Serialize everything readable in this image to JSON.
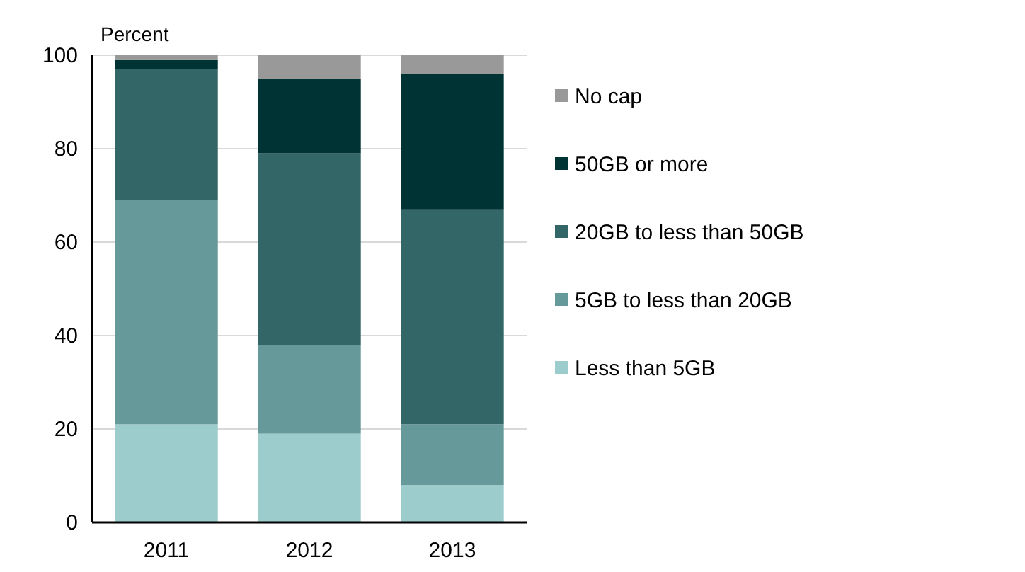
{
  "chart_data": {
    "type": "bar",
    "stacked": true,
    "ylabel": "Percent",
    "categories": [
      "2011",
      "2012",
      "2013"
    ],
    "series": [
      {
        "name": "Less than 5GB",
        "color": "#9ccccc",
        "values": [
          21,
          19,
          8
        ]
      },
      {
        "name": "5GB to less than 20GB",
        "color": "#669999",
        "values": [
          48,
          19,
          13
        ]
      },
      {
        "name": "20GB to less than 50GB",
        "color": "#336666",
        "values": [
          28,
          41,
          46
        ]
      },
      {
        "name": "50GB or more",
        "color": "#003333",
        "values": [
          2,
          16,
          29
        ]
      },
      {
        "name": "No cap",
        "color": "#999999",
        "values": [
          1,
          5,
          4
        ]
      }
    ],
    "ylim": [
      0,
      100
    ],
    "yticks": [
      0,
      20,
      40,
      60,
      80,
      100
    ],
    "grid": "y",
    "legend": "right"
  }
}
